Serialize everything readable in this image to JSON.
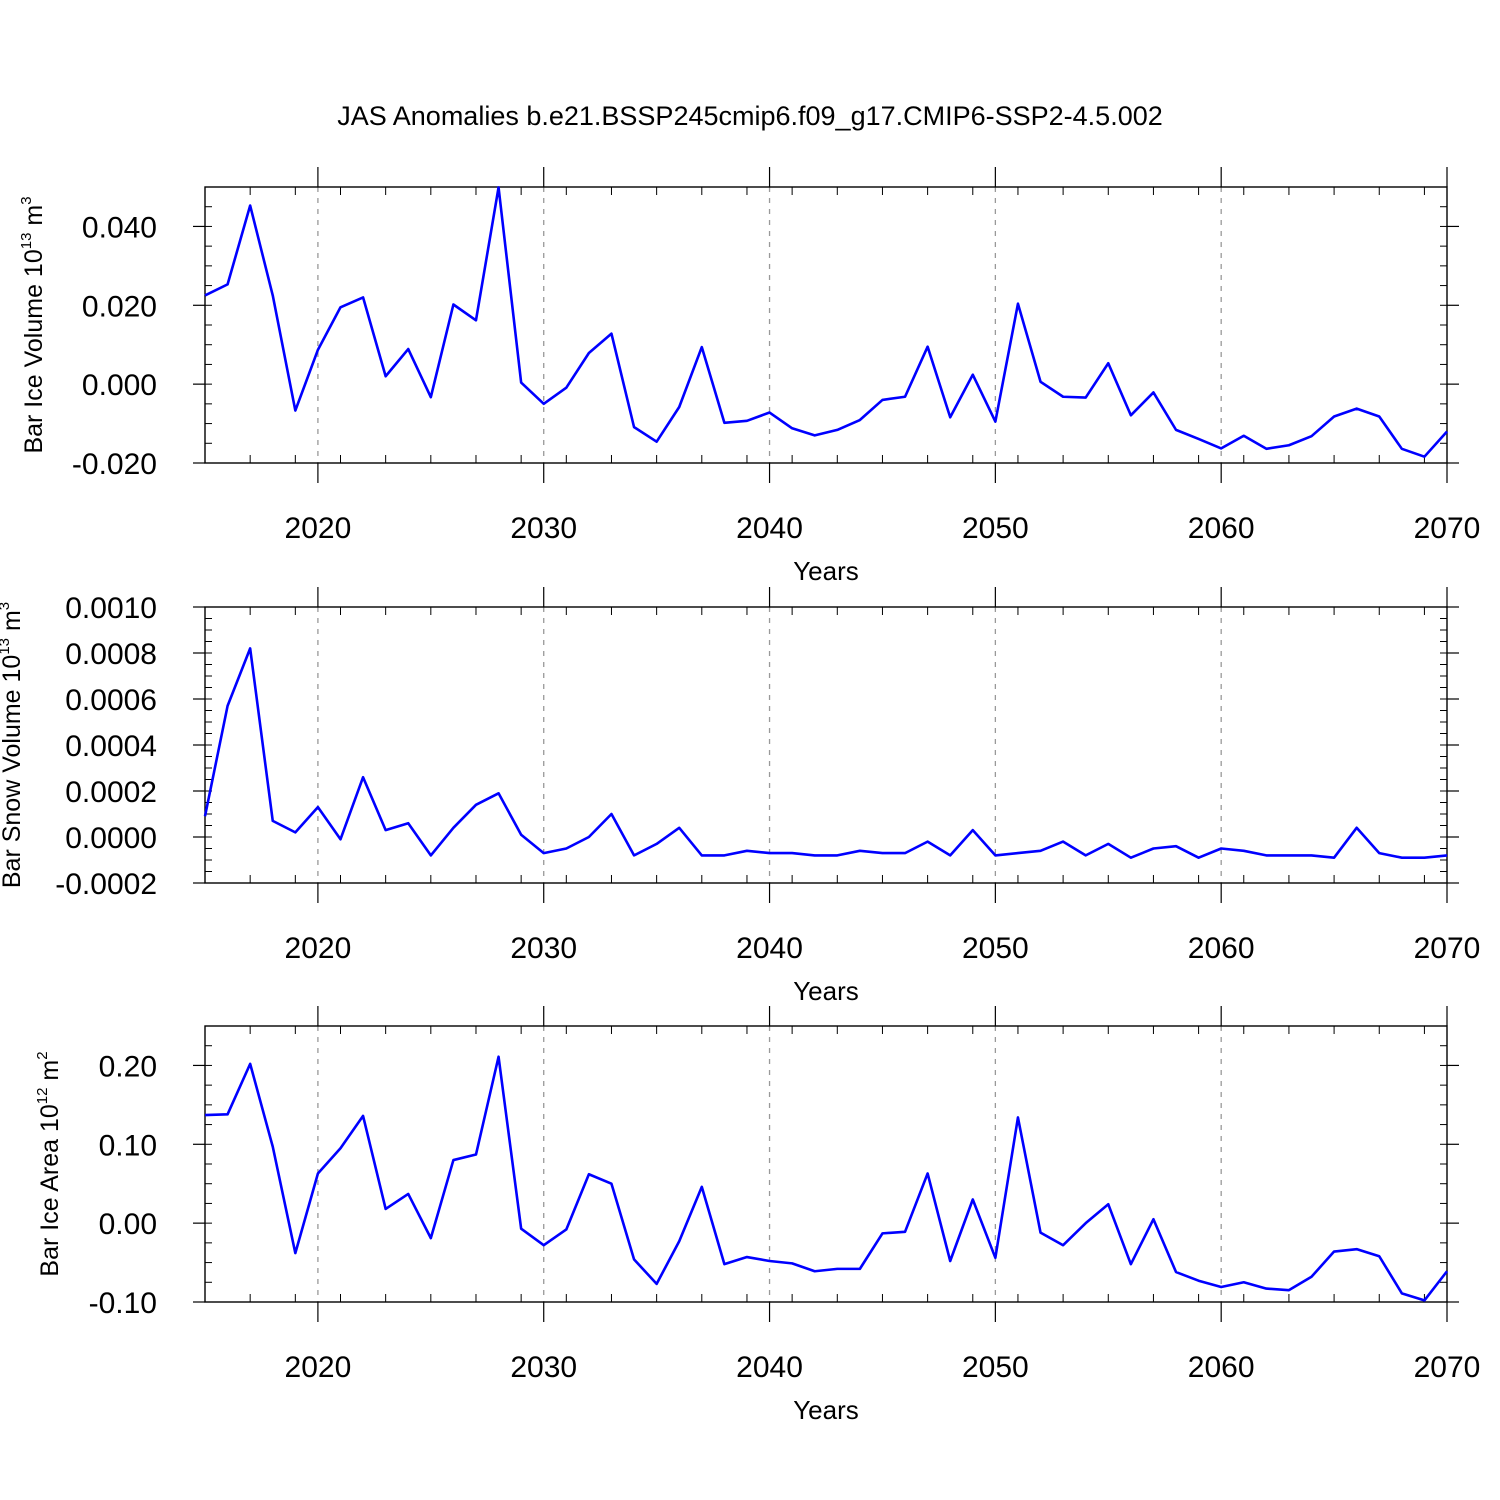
{
  "page": {
    "title": "JAS Anomalies b.e21.BSSP245cmip6.f09_g17.CMIP6-SSP2-4.5.002"
  },
  "chart_data": [
    {
      "type": "line",
      "title": "JAS Anomalies b.e21.BSSP245cmip6.f09_g17.CMIP6-SSP2-4.5.002",
      "xlabel": "Years",
      "ylabel_main": "Bar Ice Volume 10",
      "ylabel_exp": "13",
      "ylabel_unit": "m",
      "ylabel_unit_exp": "3",
      "color": "#0000ff",
      "grid": "vertical-dashed",
      "xlim": [
        2015,
        2070
      ],
      "ylim": [
        -0.02,
        0.05
      ],
      "x_ticks": [
        2020,
        2030,
        2040,
        2050,
        2060,
        2070
      ],
      "x_tick_labels": [
        "2020",
        "2030",
        "2040",
        "2050",
        "2060",
        "2070"
      ],
      "y_ticks": [
        -0.02,
        0.0,
        0.02,
        0.04
      ],
      "y_tick_labels": [
        "-0.020",
        "0.000",
        "0.020",
        "0.040"
      ],
      "x_start": 2015,
      "values": [
        0.0225,
        0.0253,
        0.0453,
        0.0225,
        -0.0067,
        0.0087,
        0.0195,
        0.022,
        0.002,
        0.0089,
        -0.0033,
        0.0202,
        0.0162,
        0.0499,
        0.0004,
        -0.005,
        -0.0009,
        0.0079,
        0.0128,
        -0.0109,
        -0.0146,
        -0.0058,
        0.0094,
        -0.0098,
        -0.0093,
        -0.0072,
        -0.0112,
        -0.013,
        -0.0116,
        -0.0091,
        -0.004,
        -0.0032,
        0.0095,
        -0.0084,
        0.0024,
        -0.0095,
        0.0204,
        0.0006,
        -0.0032,
        -0.0034,
        0.0053,
        -0.0079,
        -0.0021,
        -0.0116,
        -0.0139,
        -0.0163,
        -0.0131,
        -0.0164,
        -0.0155,
        -0.0132,
        -0.0082,
        -0.0062,
        -0.0082,
        -0.0164,
        -0.0184,
        -0.012
      ]
    },
    {
      "type": "line",
      "xlabel": "Years",
      "ylabel_main": "Bar Snow Volume 10",
      "ylabel_exp": "13",
      "ylabel_unit": "m",
      "ylabel_unit_exp": "3",
      "color": "#0000ff",
      "grid": "vertical-dashed",
      "xlim": [
        2015,
        2070
      ],
      "ylim": [
        -0.0002,
        0.001
      ],
      "x_ticks": [
        2020,
        2030,
        2040,
        2050,
        2060,
        2070
      ],
      "x_tick_labels": [
        "2020",
        "2030",
        "2040",
        "2050",
        "2060",
        "2070"
      ],
      "y_ticks": [
        -0.0002,
        0.0,
        0.0002,
        0.0004,
        0.0006,
        0.0008,
        0.001
      ],
      "y_tick_labels": [
        "-0.0002",
        "0.0000",
        "0.0002",
        "0.0004",
        "0.0006",
        "0.0008",
        "0.0010"
      ],
      "x_start": 2015,
      "values": [
        9e-05,
        0.00057,
        0.00082,
        7e-05,
        2e-05,
        0.00013,
        -1e-05,
        0.00026,
        3e-05,
        6e-05,
        -8e-05,
        4e-05,
        0.00014,
        0.00019,
        1e-05,
        -7e-05,
        -5e-05,
        0.0,
        0.0001,
        -8e-05,
        -3e-05,
        4e-05,
        -8e-05,
        -8e-05,
        -6e-05,
        -7e-05,
        -7e-05,
        -8e-05,
        -8e-05,
        -6e-05,
        -7e-05,
        -7e-05,
        -2e-05,
        -8e-05,
        3e-05,
        -8e-05,
        -7e-05,
        -6e-05,
        -2e-05,
        -8e-05,
        -3e-05,
        -9e-05,
        -5e-05,
        -4e-05,
        -9e-05,
        -5e-05,
        -6e-05,
        -8e-05,
        -8e-05,
        -8e-05,
        -9e-05,
        4e-05,
        -7e-05,
        -9e-05,
        -9e-05,
        -8e-05
      ]
    },
    {
      "type": "line",
      "xlabel": "Years",
      "ylabel_main": "Bar Ice Area 10",
      "ylabel_exp": "12",
      "ylabel_unit": "m",
      "ylabel_unit_exp": "2",
      "color": "#0000ff",
      "grid": "vertical-dashed",
      "xlim": [
        2015,
        2070
      ],
      "ylim": [
        -0.1,
        0.25
      ],
      "x_ticks": [
        2020,
        2030,
        2040,
        2050,
        2060,
        2070
      ],
      "x_tick_labels": [
        "2020",
        "2030",
        "2040",
        "2050",
        "2060",
        "2070"
      ],
      "y_ticks": [
        -0.1,
        0.0,
        0.1,
        0.2
      ],
      "y_tick_labels": [
        "-0.10",
        "0.00",
        "0.10",
        "0.20"
      ],
      "x_start": 2015,
      "values": [
        0.137,
        0.138,
        0.202,
        0.097,
        -0.038,
        0.063,
        0.095,
        0.136,
        0.018,
        0.037,
        -0.019,
        0.08,
        0.087,
        0.211,
        -0.007,
        -0.028,
        -0.008,
        0.062,
        0.05,
        -0.046,
        -0.077,
        -0.023,
        0.046,
        -0.052,
        -0.043,
        -0.048,
        -0.051,
        -0.061,
        -0.058,
        -0.058,
        -0.013,
        -0.011,
        0.063,
        -0.048,
        0.03,
        -0.044,
        0.134,
        -0.012,
        -0.028,
        0.0,
        0.024,
        -0.052,
        0.005,
        -0.062,
        -0.073,
        -0.081,
        -0.075,
        -0.083,
        -0.085,
        -0.068,
        -0.036,
        -0.033,
        -0.042,
        -0.089,
        -0.098,
        -0.061
      ]
    }
  ]
}
